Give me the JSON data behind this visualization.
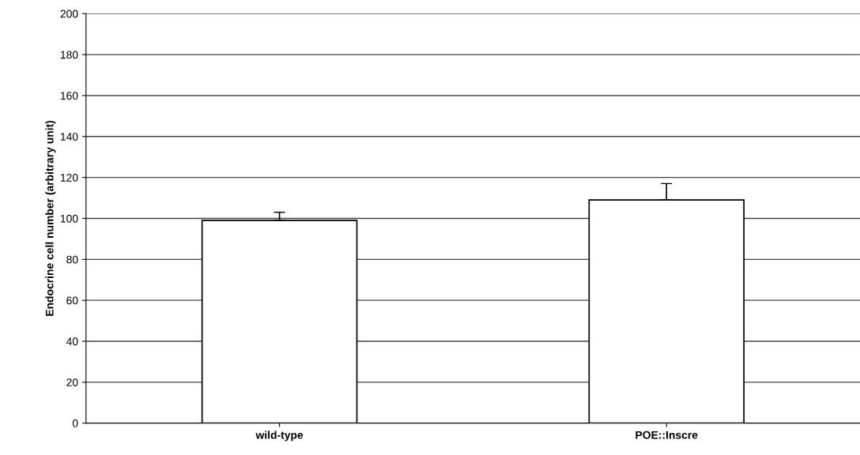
{
  "chart_data": {
    "type": "bar",
    "ylabel": "Endocrine cell number (arbitrary unit)",
    "categories": [
      "wild-type",
      "POE::Inscre"
    ],
    "values": [
      99,
      109
    ],
    "errors": [
      [
        99,
        103
      ],
      [
        109,
        117
      ]
    ],
    "color": "#ffffff",
    "ylim": [
      0,
      200
    ],
    "yticks": [
      0,
      20,
      40,
      60,
      80,
      100,
      120,
      140,
      160,
      180,
      200
    ],
    "grid": "y"
  }
}
